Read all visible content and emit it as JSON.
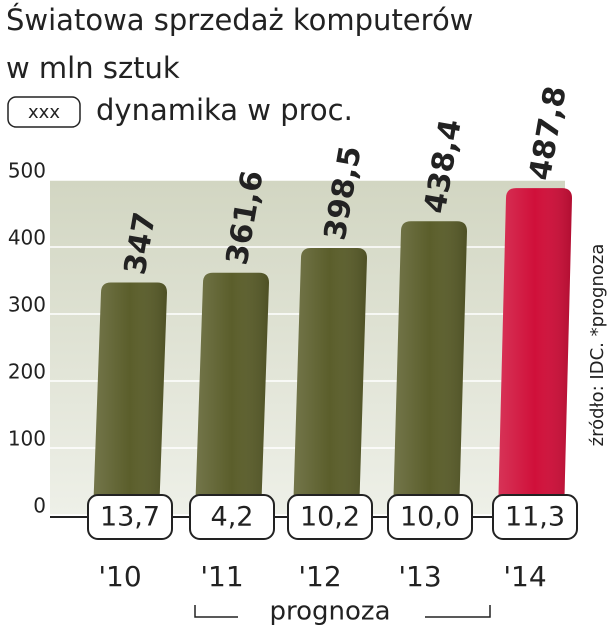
{
  "chart_data": {
    "type": "bar",
    "title": "Światowa sprzedaż komputerów",
    "subtitle": "w mln sztuk",
    "legend_box": "xxx",
    "legend_text": "dynamika w proc.",
    "categories": [
      "'10",
      "'11",
      "'12",
      "'13",
      "'14"
    ],
    "values": [
      347,
      361.6,
      398.5,
      438.4,
      487.8
    ],
    "value_labels": [
      "347",
      "361,6",
      "398,5",
      "438,4",
      "487,8"
    ],
    "colors": [
      "#5b5e2b",
      "#5b5e2b",
      "#5b5e2b",
      "#5b5e2b",
      "#d0103a"
    ],
    "value_label_colors": [
      "#111111",
      "#111111",
      "#111111",
      "#111111",
      "#d0103a"
    ],
    "growth": {
      "values": [
        13.7,
        4.2,
        10.2,
        10.0,
        11.3
      ],
      "value_labels": [
        "13,7",
        "4,2",
        "10,2",
        "10,0",
        "11,3"
      ]
    },
    "forecast_label": "prognoza",
    "source": "źródło: IDC. *prognoza",
    "ylim": [
      0,
      500
    ],
    "yticks": [
      0,
      100,
      200,
      300,
      400,
      500
    ],
    "grid": true
  }
}
